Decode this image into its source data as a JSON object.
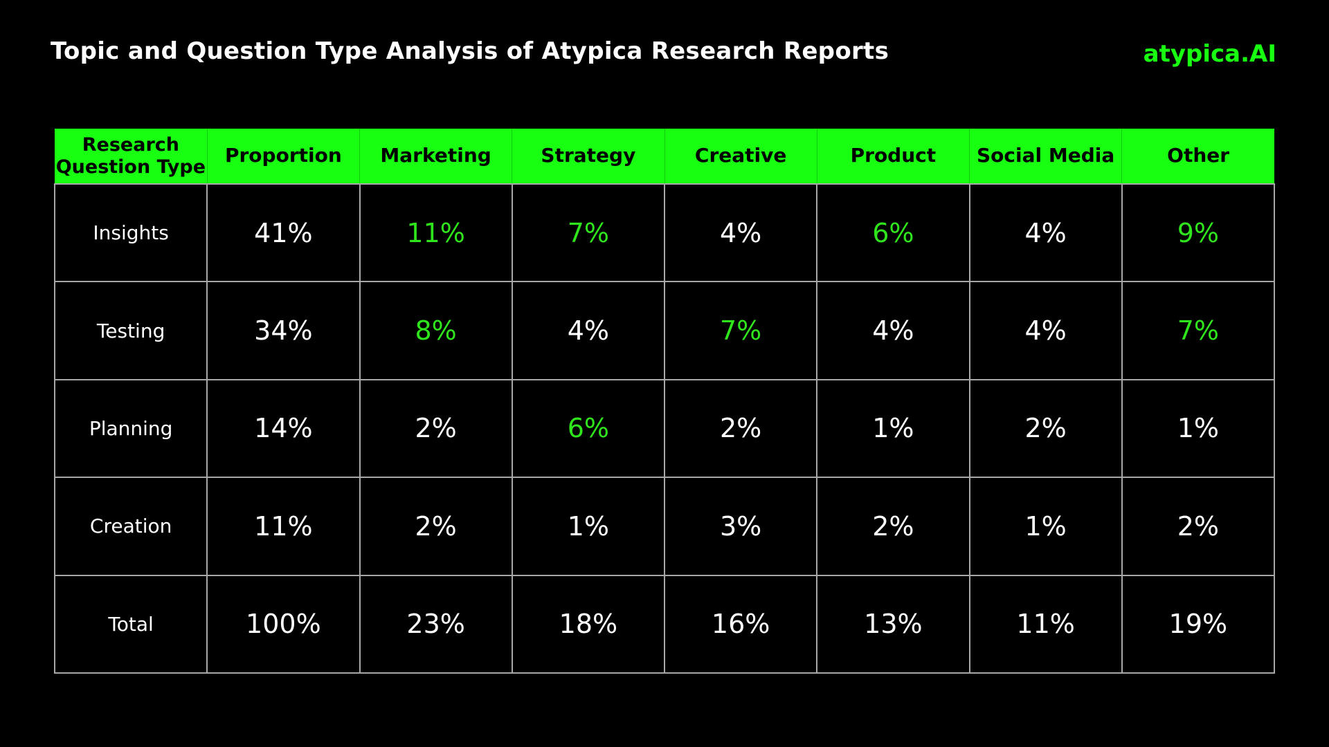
{
  "header": {
    "title": "Topic and Question Type Analysis of Atypica Research Reports",
    "brand": "atypica.AI"
  },
  "colors": {
    "accent": "#18ff11",
    "highlight_text": "#2fe51c",
    "background": "#000000",
    "grid": "#a8a8a8"
  },
  "chart_data": {
    "type": "table",
    "title": "Topic and Question Type Analysis of Atypica Research Reports",
    "corner_header": "Research Question Type",
    "columns": [
      "Proportion",
      "Marketing",
      "Strategy",
      "Creative",
      "Product",
      "Social Media",
      "Other"
    ],
    "rows": [
      {
        "label": "Insights",
        "values": [
          "41%",
          "11%",
          "7%",
          "4%",
          "6%",
          "4%",
          "9%"
        ],
        "highlighted": [
          false,
          true,
          true,
          false,
          true,
          false,
          true
        ]
      },
      {
        "label": "Testing",
        "values": [
          "34%",
          "8%",
          "4%",
          "7%",
          "4%",
          "4%",
          "7%"
        ],
        "highlighted": [
          false,
          true,
          false,
          true,
          false,
          false,
          true
        ]
      },
      {
        "label": "Planning",
        "values": [
          "14%",
          "2%",
          "6%",
          "2%",
          "1%",
          "2%",
          "1%"
        ],
        "highlighted": [
          false,
          false,
          true,
          false,
          false,
          false,
          false
        ]
      },
      {
        "label": "Creation",
        "values": [
          "11%",
          "2%",
          "1%",
          "3%",
          "2%",
          "1%",
          "2%"
        ],
        "highlighted": [
          false,
          false,
          false,
          false,
          false,
          false,
          false
        ]
      },
      {
        "label": "Total",
        "values": [
          "100%",
          "23%",
          "18%",
          "16%",
          "13%",
          "11%",
          "19%"
        ],
        "highlighted": [
          false,
          false,
          false,
          false,
          false,
          false,
          false
        ]
      }
    ]
  }
}
